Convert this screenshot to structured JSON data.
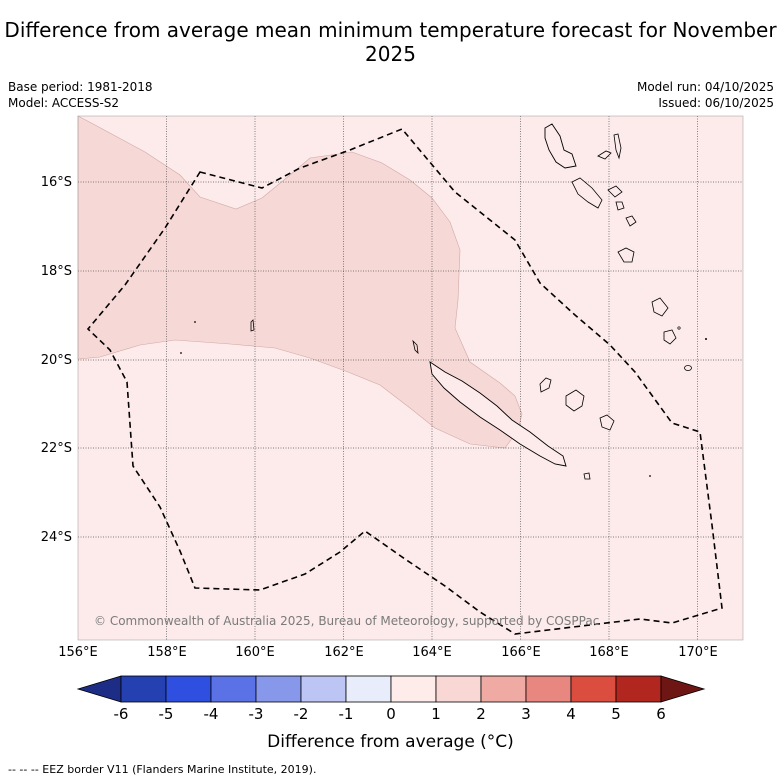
{
  "title": "Difference from average mean minimum temperature forecast for November 2025",
  "base_period": "Base period: 1981-2018",
  "model": "Model: ACCESS-S2",
  "model_run": "Model run: 04/10/2025",
  "issued": "Issued: 06/10/2025",
  "copyright": "© Commonwealth of Australia 2025, Bureau of Meteorology, supported by COSPPac",
  "lat_labels": [
    "16°S",
    "18°S",
    "20°S",
    "22°S",
    "24°S"
  ],
  "lon_labels": [
    "156°E",
    "158°E",
    "160°E",
    "162°E",
    "164°E",
    "166°E",
    "168°E",
    "170°E"
  ],
  "colorbar": {
    "ticks": [
      "-6",
      "-5",
      "-4",
      "-3",
      "-2",
      "-1",
      "0",
      "1",
      "2",
      "3",
      "4",
      "5",
      "6"
    ],
    "colors": [
      "#1d2d86",
      "#2540b0",
      "#2f4fe0",
      "#5b72e6",
      "#8797ea",
      "#bdc5f4",
      "#e9ecfa",
      "#fdecea",
      "#f8d7d5",
      "#f0aaa4",
      "#e8877f",
      "#db4d3f",
      "#b1261f",
      "#6d1614"
    ],
    "label": "Difference from average (°C)"
  },
  "legend_footer": "-- -- -- EEZ border V11 (Flanders Marine Institute, 2019).",
  "map": {
    "extent": {
      "lon_min": 156,
      "lon_max": 171,
      "lat_min": -26.5,
      "lat_max": -14.7
    },
    "background_class": "0 to 1",
    "region_class": "1 to 2",
    "background_color": "#fcebea",
    "region_color": "#f6d8d6"
  }
}
